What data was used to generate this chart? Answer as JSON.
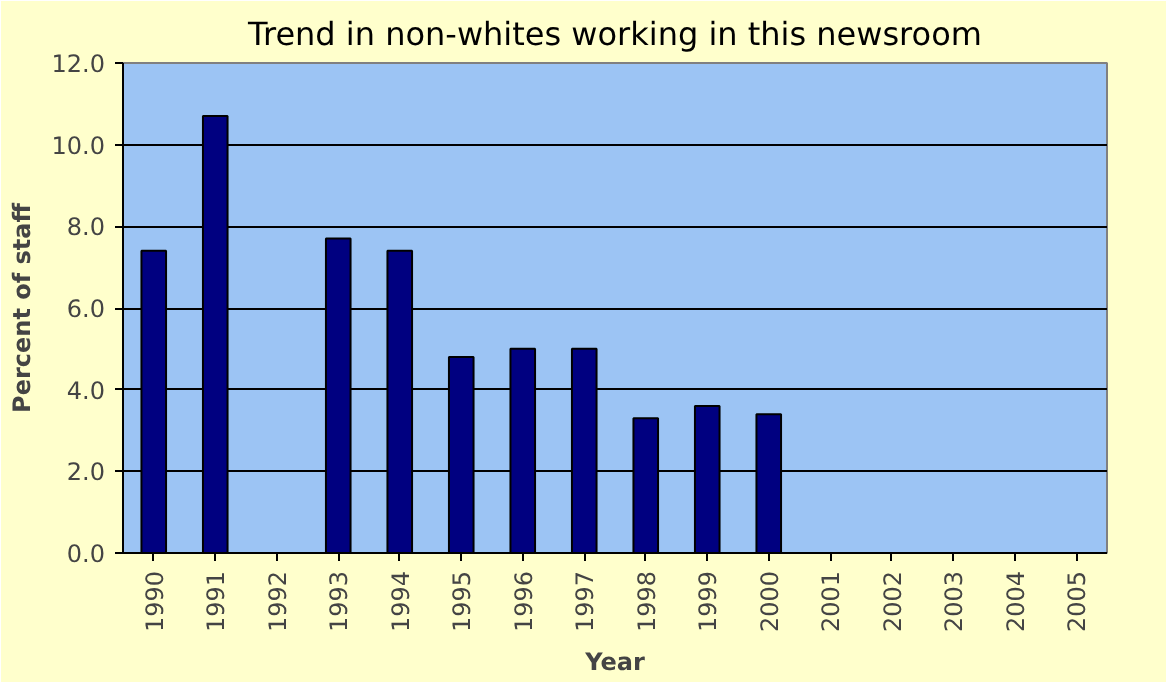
{
  "chart_data": {
    "type": "bar",
    "title": "Trend in non-whites working in this newsroom",
    "xlabel": "Year",
    "ylabel": "Percent of staff",
    "categories": [
      "1990",
      "1991",
      "1992",
      "1993",
      "1994",
      "1995",
      "1996",
      "1997",
      "1998",
      "1999",
      "2000",
      "2001",
      "2002",
      "2003",
      "2004",
      "2005"
    ],
    "series": [
      {
        "color": "#000080",
        "values": [
          7.4,
          10.7,
          null,
          7.7,
          7.4,
          4.8,
          5.0,
          5.0,
          3.3,
          3.6,
          3.4,
          null,
          null,
          null,
          null,
          null
        ]
      }
    ],
    "ylim": [
      0,
      12
    ],
    "yticks": [
      {
        "value": 0,
        "label": "0.0"
      },
      {
        "value": 2,
        "label": "2.0"
      },
      {
        "value": 4,
        "label": "4.0"
      },
      {
        "value": 6,
        "label": "6.0"
      },
      {
        "value": 8,
        "label": "8.0"
      },
      {
        "value": 10,
        "label": "10.0"
      },
      {
        "value": 12,
        "label": "12.0"
      }
    ],
    "grid": "y"
  }
}
